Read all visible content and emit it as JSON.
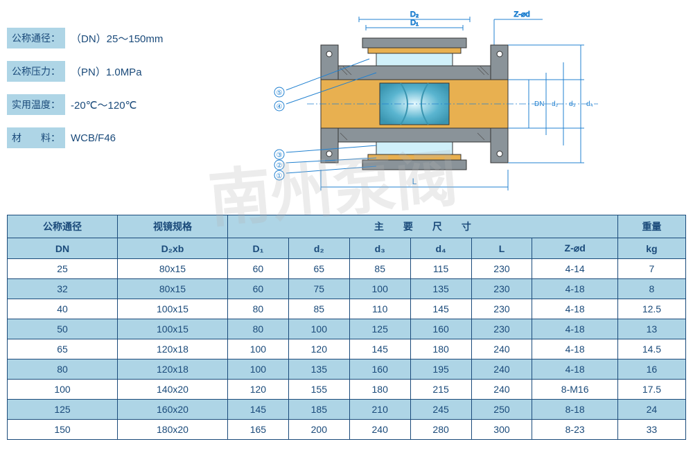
{
  "specs": [
    {
      "label": "公称通径：",
      "value": "（DN）25～150mm"
    },
    {
      "label": "公称压力：",
      "value": "（PN）1.0MPa"
    },
    {
      "label": "实用温度：",
      "value": "-20℃～120℃"
    },
    {
      "label": "材　　料：",
      "value": "WCB/F46"
    }
  ],
  "diagram": {
    "labels": {
      "D2": "D₂",
      "D1": "D₁",
      "DN": "DN",
      "d2": "d₂",
      "d3": "d₃",
      "d4": "d₄",
      "L": "L",
      "Zd": "Z-⌀d"
    },
    "callouts": [
      "①",
      "②",
      "③",
      "④",
      "⑤"
    ],
    "colors": {
      "body": "#8a9399",
      "lining": "#e8b050",
      "glass_outer": "#5ab5d0",
      "glass_inner": "#ffffff",
      "dim_line": "#2080d0",
      "outline": "#333333"
    }
  },
  "table": {
    "header_row1": [
      "公称通径",
      "视镜规格",
      "主　　要　　尺　　寸",
      "重量"
    ],
    "header_row2": [
      "DN",
      "D₂xb",
      "D₁",
      "d₂",
      "d₃",
      "d₄",
      "L",
      "Z-⌀d",
      "kg"
    ],
    "rows": [
      [
        "25",
        "80x15",
        "60",
        "65",
        "85",
        "115",
        "230",
        "4-14",
        "7"
      ],
      [
        "32",
        "80x15",
        "60",
        "75",
        "100",
        "135",
        "230",
        "4-18",
        "8"
      ],
      [
        "40",
        "100x15",
        "80",
        "85",
        "110",
        "145",
        "230",
        "4-18",
        "12.5"
      ],
      [
        "50",
        "100x15",
        "80",
        "100",
        "125",
        "160",
        "230",
        "4-18",
        "13"
      ],
      [
        "65",
        "120x18",
        "100",
        "120",
        "145",
        "180",
        "240",
        "4-18",
        "14.5"
      ],
      [
        "80",
        "120x18",
        "100",
        "135",
        "160",
        "195",
        "240",
        "4-18",
        "16"
      ],
      [
        "100",
        "140x20",
        "120",
        "155",
        "180",
        "215",
        "240",
        "8-M16",
        "17.5"
      ],
      [
        "125",
        "160x20",
        "145",
        "185",
        "210",
        "245",
        "250",
        "8-18",
        "24"
      ],
      [
        "150",
        "180x20",
        "165",
        "200",
        "240",
        "280",
        "300",
        "8-23",
        "33"
      ]
    ],
    "header_bg": "#aed5e6",
    "row_alt_bg": "#aed5e6",
    "border_color": "#1a4a7a",
    "text_color": "#1a4a7a"
  },
  "watermark": "南州泵阀"
}
